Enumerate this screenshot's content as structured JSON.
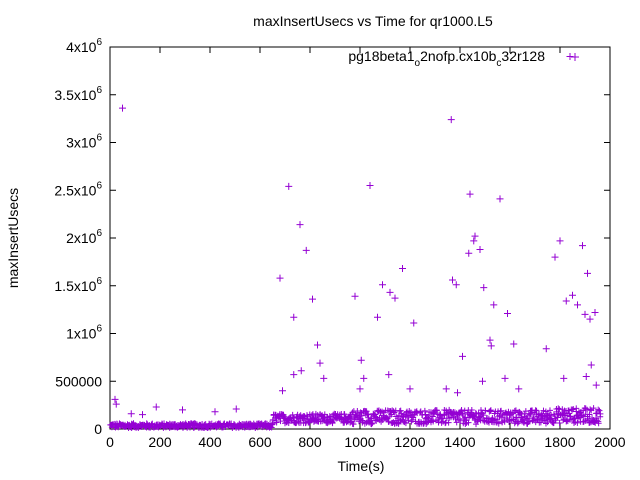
{
  "chart_data": {
    "type": "scatter",
    "title": "maxInsertUsecs vs Time for qr1000.L5",
    "xlabel": "Time(s)",
    "ylabel": "maxInsertUsecs",
    "xlim": [
      0,
      2000
    ],
    "ylim": [
      0,
      4000000
    ],
    "x_ticks": [
      "0",
      "200",
      "400",
      "600",
      "800",
      "1000",
      "1200",
      "1400",
      "1600",
      "1800",
      "2000"
    ],
    "y_ticks": [
      {
        "value": 0,
        "base": "0",
        "exp": ""
      },
      {
        "value": 500000,
        "base": "500000",
        "exp": ""
      },
      {
        "value": 1000000,
        "base": "1x10",
        "exp": "6"
      },
      {
        "value": 1500000,
        "base": "1.5x10",
        "exp": "6"
      },
      {
        "value": 2000000,
        "base": "2x10",
        "exp": "6"
      },
      {
        "value": 2500000,
        "base": "2.5x10",
        "exp": "6"
      },
      {
        "value": 3000000,
        "base": "3x10",
        "exp": "6"
      },
      {
        "value": 3500000,
        "base": "3.5x10",
        "exp": "6"
      },
      {
        "value": 4000000,
        "base": "4x10",
        "exp": "6"
      }
    ],
    "legend": {
      "position": "top-right",
      "parts": [
        {
          "text": "pg18beta1",
          "sub": false
        },
        {
          "text": "o",
          "sub": true
        },
        {
          "text": "2nofp.cx10b",
          "sub": false
        },
        {
          "text": "c",
          "sub": true
        },
        {
          "text": "32r128",
          "sub": false
        }
      ]
    },
    "colors": {
      "series": "#9400d3",
      "axis": "#000000"
    },
    "series": [
      {
        "marker": "plus",
        "points": [
          [
            20,
            310000
          ],
          [
            25,
            260000
          ],
          [
            50,
            3360000
          ],
          [
            85,
            160000
          ],
          [
            130,
            150000
          ],
          [
            185,
            230000
          ],
          [
            290,
            200000
          ],
          [
            420,
            180000
          ],
          [
            505,
            210000
          ],
          [
            680,
            1580000
          ],
          [
            690,
            400000
          ],
          [
            715,
            2540000
          ],
          [
            735,
            1170000
          ],
          [
            735,
            570000
          ],
          [
            760,
            2140000
          ],
          [
            765,
            610000
          ],
          [
            785,
            1870000
          ],
          [
            810,
            1360000
          ],
          [
            830,
            880000
          ],
          [
            840,
            690000
          ],
          [
            855,
            530000
          ],
          [
            980,
            1390000
          ],
          [
            1000,
            420000
          ],
          [
            1005,
            720000
          ],
          [
            1015,
            530000
          ],
          [
            1040,
            2550000
          ],
          [
            1070,
            1170000
          ],
          [
            1090,
            1510000
          ],
          [
            1115,
            570000
          ],
          [
            1120,
            1430000
          ],
          [
            1140,
            1370000
          ],
          [
            1170,
            1680000
          ],
          [
            1200,
            420000
          ],
          [
            1215,
            1110000
          ],
          [
            1345,
            420000
          ],
          [
            1365,
            3240000
          ],
          [
            1370,
            1560000
          ],
          [
            1385,
            1510000
          ],
          [
            1390,
            380000
          ],
          [
            1410,
            760000
          ],
          [
            1435,
            1840000
          ],
          [
            1440,
            2460000
          ],
          [
            1455,
            1970000
          ],
          [
            1460,
            2020000
          ],
          [
            1480,
            1880000
          ],
          [
            1490,
            500000
          ],
          [
            1495,
            1480000
          ],
          [
            1520,
            930000
          ],
          [
            1525,
            870000
          ],
          [
            1535,
            1300000
          ],
          [
            1560,
            2410000
          ],
          [
            1580,
            530000
          ],
          [
            1590,
            1210000
          ],
          [
            1615,
            890000
          ],
          [
            1635,
            420000
          ],
          [
            1745,
            840000
          ],
          [
            1780,
            1800000
          ],
          [
            1800,
            1970000
          ],
          [
            1815,
            530000
          ],
          [
            1825,
            1340000
          ],
          [
            1840,
            3900000
          ],
          [
            1850,
            1400000
          ],
          [
            1870,
            1300000
          ],
          [
            1890,
            1920000
          ],
          [
            1900,
            1200000
          ],
          [
            1905,
            550000
          ],
          [
            1910,
            1630000
          ],
          [
            1920,
            1150000
          ],
          [
            1925,
            670000
          ],
          [
            1940,
            1220000
          ],
          [
            1945,
            460000
          ]
        ]
      }
    ],
    "dense_baseline": {
      "description_segments": [
        {
          "from": 0,
          "to": 650,
          "low": 10000,
          "high": 60000
        },
        {
          "from": 650,
          "to": 960,
          "low": 60000,
          "high": 160000
        },
        {
          "from": 960,
          "to": 1750,
          "low": 50000,
          "high": 200000
        },
        {
          "from": 1750,
          "to": 1960,
          "low": 60000,
          "high": 220000
        }
      ]
    }
  }
}
